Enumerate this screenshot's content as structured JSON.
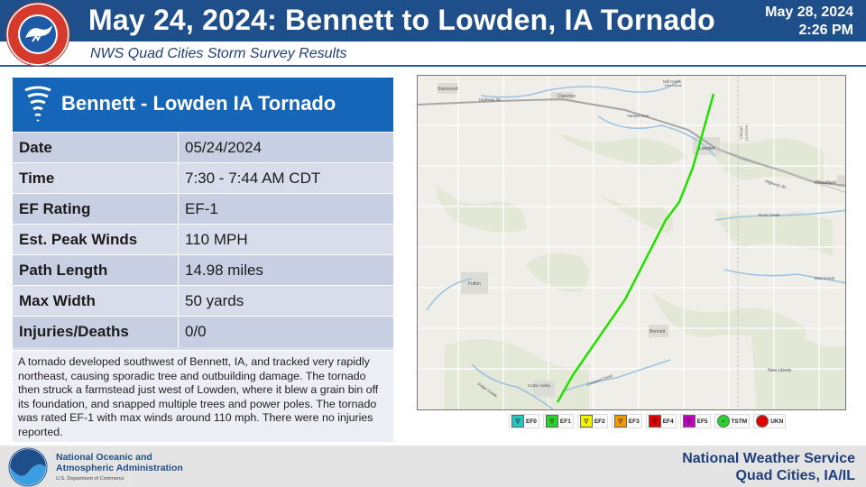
{
  "header": {
    "title": "May 24, 2024:  Bennett to Lowden, IA Tornado",
    "date": "May 28, 2024",
    "time": "2:26 PM",
    "subtitle": "NWS Quad Cities Storm Survey Results"
  },
  "card": {
    "title": "Bennett - Lowden IA Tornado",
    "rows": [
      {
        "label": "Date",
        "value": "05/24/2024"
      },
      {
        "label": "Time",
        "value": "7:30 - 7:44 AM CDT"
      },
      {
        "label": "EF Rating",
        "value": "EF-1"
      },
      {
        "label": "Est. Peak Winds",
        "value": "110 MPH"
      },
      {
        "label": "Path Length",
        "value": "14.98 miles"
      },
      {
        "label": "Max Width",
        "value": "50 yards"
      },
      {
        "label": "Injuries/Deaths",
        "value": "0/0"
      }
    ],
    "description": "A tornado developed southwest of Bennett, IA, and tracked very rapidly northeast, causing sporadic tree and outbuilding damage. The tornado then struck a farmstead just west of Lowden, where it blew a grain bin off its foundation, and snapped multiple trees and power poles. The tornado was rated EF-1 with max winds around 110 mph. There were no injuries reported."
  },
  "map": {
    "labels": {
      "stanwood": "Stanwood",
      "clarence": "Clarence",
      "lowden": "Lowden",
      "wheatland": "Wheatland",
      "fulton": "Fulton",
      "bennett": "Bennett",
      "new_liberty": "New Liberty",
      "cedar_valley": "Cedar Valley",
      "highway30": "Highway 30",
      "highway30b": "Highway 30",
      "yankee_run": "Yankee Run",
      "mill_creek": "Mill Creek",
      "county_line_cedar": "CEDAR",
      "county_line_clinton": "CLINTON",
      "rock_creek": "Rock Creek",
      "sugar_creek": "Sugar Creek",
      "crooked_creek": "Crooked Creek",
      "mud_creek": "Mud Creek",
      "elm_creek": "Elm Creek"
    },
    "track_color": "#22e000"
  },
  "legend": [
    {
      "label": "EF0",
      "color": "#26c5c5",
      "symbol": "tri"
    },
    {
      "label": "EF1",
      "color": "#2ad12a",
      "symbol": "tri"
    },
    {
      "label": "EF2",
      "color": "#f4f400",
      "symbol": "tri"
    },
    {
      "label": "EF3",
      "color": "#f29a00",
      "symbol": "tri"
    },
    {
      "label": "EF4",
      "color": "#e00000",
      "symbol": "tri"
    },
    {
      "label": "EF5",
      "color": "#c000c0",
      "symbol": "tri"
    },
    {
      "label": "TSTM",
      "color": "#2ad12a",
      "symbol": "dot"
    },
    {
      "label": "UKN",
      "color": "#e00000",
      "symbol": "circle"
    }
  ],
  "footer": {
    "noaa_line1": "National Oceanic and",
    "noaa_line2": "Atmospheric Administration",
    "noaa_dept": "U.S. Department of Commerce",
    "nws_line1": "National Weather Service",
    "nws_line2": "Quad Cities, IA/IL"
  }
}
